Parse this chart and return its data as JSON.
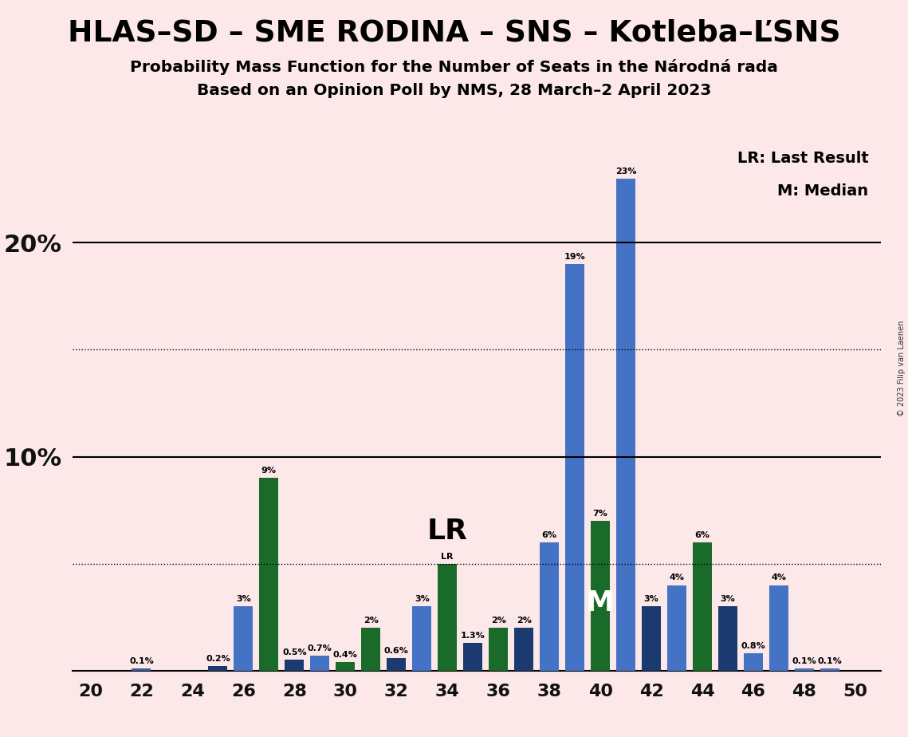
{
  "title": "HLAS–SD – SME RODINA – SNS – Kotleba–ĽSNS",
  "subtitle1": "Probability Mass Function for the Number of Seats in the Národná rada",
  "subtitle2": "Based on an Opinion Poll by NMS, 28 March–2 April 2023",
  "copyright": "© 2023 Filip van Laenen",
  "background_color": "#fce8e8",
  "bar_data": [
    {
      "seat": 20,
      "value": 0.0,
      "label": "0%",
      "color": "#3a5fa0"
    },
    {
      "seat": 21,
      "value": 0.0,
      "label": "0%",
      "color": "#3a5fa0"
    },
    {
      "seat": 22,
      "value": 0.1,
      "label": "0.1%",
      "color": "#3a5fa0"
    },
    {
      "seat": 23,
      "value": 0.0,
      "label": "0%",
      "color": "#3a5fa0"
    },
    {
      "seat": 24,
      "value": 0.0,
      "label": "0%",
      "color": "#3a5fa0"
    },
    {
      "seat": 25,
      "value": 0.2,
      "label": "0.2%",
      "color": "#1a3a70"
    },
    {
      "seat": 26,
      "value": 3.0,
      "label": "3%",
      "color": "#4472c4"
    },
    {
      "seat": 27,
      "value": 9.0,
      "label": "9%",
      "color": "#1a6b2a"
    },
    {
      "seat": 28,
      "value": 0.5,
      "label": "0.5%",
      "color": "#1a3a70"
    },
    {
      "seat": 29,
      "value": 0.7,
      "label": "0.7%",
      "color": "#4472c4"
    },
    {
      "seat": 30,
      "value": 0.4,
      "label": "0.4%",
      "color": "#1a6b2a"
    },
    {
      "seat": 31,
      "value": 2.0,
      "label": "2%",
      "color": "#1a6b2a"
    },
    {
      "seat": 32,
      "value": 0.6,
      "label": "0.6%",
      "color": "#1a3a70"
    },
    {
      "seat": 33,
      "value": 3.0,
      "label": "3%",
      "color": "#4472c4"
    },
    {
      "seat": 34,
      "value": 5.0,
      "label": "LR",
      "color": "#1a6b2a",
      "is_lr": true
    },
    {
      "seat": 35,
      "value": 1.3,
      "label": "1.3%",
      "color": "#1a3a70"
    },
    {
      "seat": 36,
      "value": 2.0,
      "label": "2%",
      "color": "#1a6b2a"
    },
    {
      "seat": 37,
      "value": 2.0,
      "label": "2%",
      "color": "#1a3a70"
    },
    {
      "seat": 38,
      "value": 6.0,
      "label": "6%",
      "color": "#4472c4"
    },
    {
      "seat": 39,
      "value": 19.0,
      "label": "19%",
      "color": "#4472c4"
    },
    {
      "seat": 40,
      "value": 7.0,
      "label": "7%",
      "color": "#1a6b2a",
      "is_median": true
    },
    {
      "seat": 41,
      "value": 23.0,
      "label": "23%",
      "color": "#4472c4"
    },
    {
      "seat": 42,
      "value": 3.0,
      "label": "3%",
      "color": "#1a3a70"
    },
    {
      "seat": 43,
      "value": 4.0,
      "label": "4%",
      "color": "#4472c4"
    },
    {
      "seat": 44,
      "value": 6.0,
      "label": "6%",
      "color": "#1a6b2a"
    },
    {
      "seat": 45,
      "value": 3.0,
      "label": "3%",
      "color": "#1a3a70"
    },
    {
      "seat": 46,
      "value": 0.8,
      "label": "0.8%",
      "color": "#4472c4"
    },
    {
      "seat": 47,
      "value": 4.0,
      "label": "4%",
      "color": "#4472c4"
    },
    {
      "seat": 48,
      "value": 0.1,
      "label": "0.1%",
      "color": "#4472c4"
    },
    {
      "seat": 49,
      "value": 0.1,
      "label": "0.1%",
      "color": "#4472c4"
    },
    {
      "seat": 50,
      "value": 0.0,
      "label": "0%",
      "color": "#4472c4"
    }
  ],
  "lr_seat": 34,
  "median_seat": 40,
  "ylim": [
    0,
    26
  ],
  "solid_ylines": [
    10,
    20
  ],
  "dotted_ylines": [
    5,
    15
  ],
  "bar_width": 0.75
}
